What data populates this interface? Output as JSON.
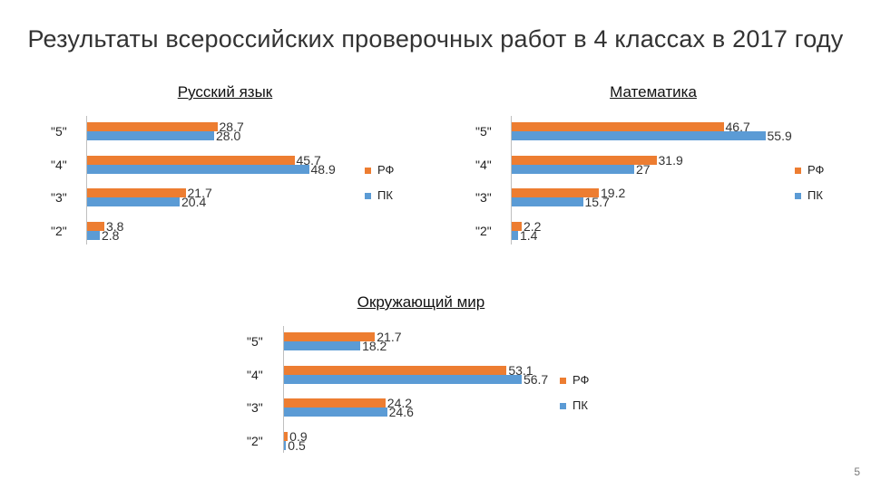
{
  "page": {
    "title": "Результаты всероссийских проверочных работ в 4 классах в 2017 году",
    "slide_number": "5"
  },
  "colors": {
    "rf": "#ED7D31",
    "pk": "#5B9BD5"
  },
  "chart_data": [
    {
      "type": "bar",
      "orientation": "horizontal",
      "title": "Русский язык",
      "categories": [
        "\"5\"",
        "\"4\"",
        "\"3\"",
        "\"2\""
      ],
      "series": [
        {
          "name": "РФ",
          "values": [
            28.7,
            45.7,
            21.7,
            3.8
          ],
          "labels": [
            "28.7",
            "45.7",
            "21.7",
            "3.8"
          ]
        },
        {
          "name": "ПК",
          "values": [
            28.0,
            48.9,
            20.4,
            2.8
          ],
          "labels": [
            "28.0",
            "48.9",
            "20.4",
            "2.8"
          ]
        }
      ],
      "legend": "right"
    },
    {
      "type": "bar",
      "orientation": "horizontal",
      "title": "Математика",
      "categories": [
        "\"5\"",
        "\"4\"",
        "\"3\"",
        "\"2\""
      ],
      "series": [
        {
          "name": "РФ",
          "values": [
            46.7,
            31.9,
            19.2,
            2.2
          ],
          "labels": [
            "46.7",
            "31.9",
            "19.2",
            "2.2"
          ]
        },
        {
          "name": "ПК",
          "values": [
            55.9,
            27,
            15.7,
            1.4
          ],
          "labels": [
            "55.9",
            "27",
            "15.7",
            "1.4"
          ]
        }
      ],
      "legend": "right"
    },
    {
      "type": "bar",
      "orientation": "horizontal",
      "title": "Окружающий мир",
      "categories": [
        "\"5\"",
        "\"4\"",
        "\"3\"",
        "\"2\""
      ],
      "series": [
        {
          "name": "РФ",
          "values": [
            21.7,
            53.1,
            24.2,
            0.9
          ],
          "labels": [
            "21.7",
            "53.1",
            "24.2",
            "0.9"
          ]
        },
        {
          "name": "ПК",
          "values": [
            18.2,
            56.7,
            24.6,
            0.5
          ],
          "labels": [
            "18.2",
            "56.7",
            "24.6",
            "0.5"
          ]
        }
      ],
      "legend": "right"
    }
  ]
}
